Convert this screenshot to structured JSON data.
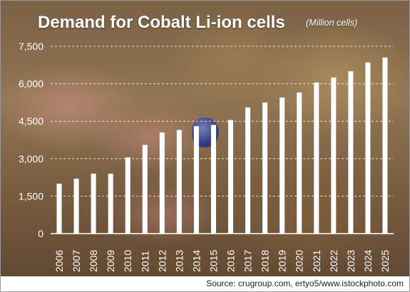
{
  "chart_data": {
    "type": "bar",
    "title": "Demand for Cobalt Li-ion cells",
    "subtitle": "(Million cells)",
    "xlabel": "",
    "ylabel": "",
    "categories": [
      "2006",
      "2007",
      "2008",
      "2009",
      "2010",
      "2011",
      "2012",
      "2013",
      "2014",
      "2015",
      "2016",
      "2017",
      "2018",
      "2019",
      "2020",
      "2021",
      "2022",
      "2023",
      "2024",
      "2025"
    ],
    "values": [
      2000,
      2200,
      2400,
      2400,
      3050,
      3550,
      4050,
      4150,
      4300,
      4350,
      4550,
      5050,
      5250,
      5450,
      5650,
      6050,
      6250,
      6500,
      6850,
      7050
    ],
    "ylim": [
      0,
      7500
    ],
    "yticks": [
      "0",
      "1,500",
      "3,000",
      "4,500",
      "6,000",
      "7,500"
    ],
    "ytick_values": [
      0,
      1500,
      3000,
      4500,
      6000,
      7500
    ],
    "grid": true,
    "bar_color": "#ffffff"
  },
  "source": "Source: crugroup.com, ertyo5/www.istockphoto.com"
}
